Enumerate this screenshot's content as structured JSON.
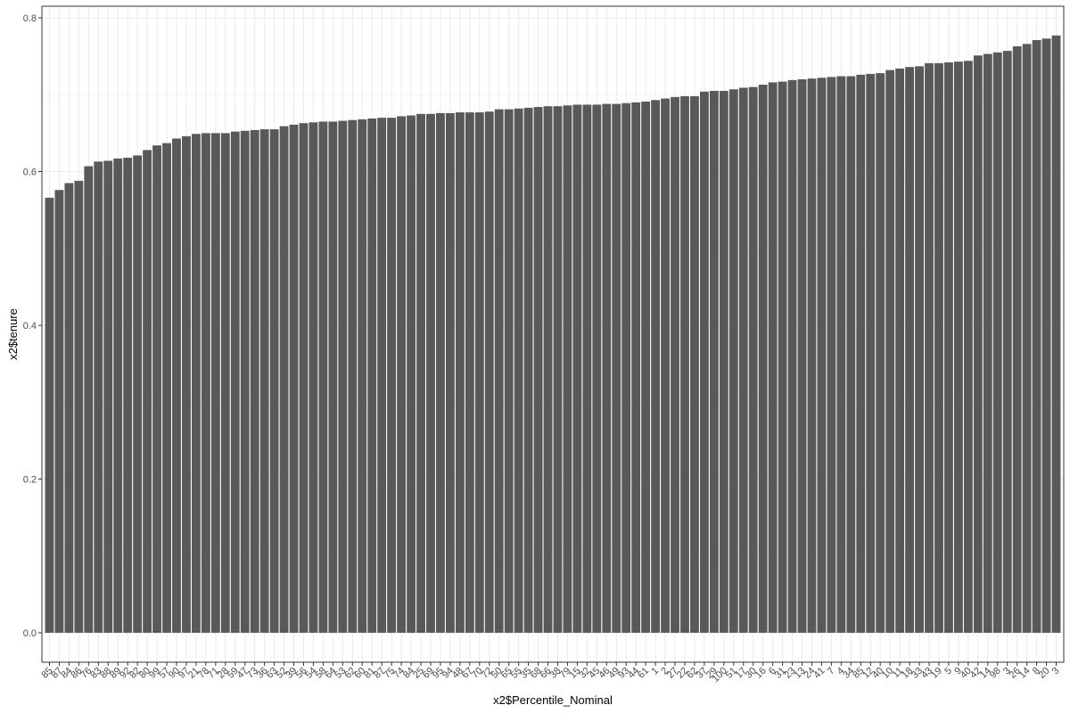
{
  "colors": {
    "bar": "#595959",
    "panel_border": "#333333",
    "grid_major": "#ebebeb",
    "grid_minor": "#f2f2f2",
    "tick_text": "#4d4d4d",
    "axis_title": "#000000",
    "background": "#ffffff"
  },
  "chart_data": {
    "type": "bar",
    "title": "",
    "xlabel": "x2$Percentile_Nominal",
    "ylabel": "x2$tenure",
    "ylim": [
      0,
      0.8
    ],
    "yticks": [
      0.0,
      0.2,
      0.4,
      0.6,
      0.8
    ],
    "ytick_labels": [
      "0.0",
      "0.2",
      "0.4",
      "0.6",
      "0.8"
    ],
    "grid": true,
    "legend": "none",
    "categories": [
      "85",
      "87",
      "84",
      "86",
      "76",
      "83",
      "88",
      "89",
      "92",
      "82",
      "80",
      "99",
      "57",
      "90",
      "97",
      "21",
      "78",
      "71",
      "28",
      "59",
      "47",
      "73",
      "36",
      "63",
      "52",
      "39",
      "56",
      "54",
      "58",
      "64",
      "53",
      "62",
      "60",
      "81",
      "87",
      "75",
      "74",
      "84",
      "25",
      "69",
      "95",
      "94",
      "48",
      "67",
      "70",
      "72",
      "50",
      "65",
      "55",
      "35",
      "68",
      "66",
      "38",
      "79",
      "15",
      "32",
      "45",
      "46",
      "49",
      "93",
      "44",
      "61",
      "1",
      "2",
      "27",
      "22",
      "62",
      "37",
      "29",
      "100",
      "51",
      "17",
      "30",
      "16",
      "6",
      "31",
      "23",
      "13",
      "24",
      "41",
      "7",
      "4",
      "34",
      "85",
      "12",
      "40",
      "10",
      "11",
      "18",
      "33",
      "43",
      "19",
      "5",
      "9",
      "40",
      "42",
      "14",
      "98",
      "3",
      "26",
      "14",
      "8",
      "20",
      "3"
    ],
    "values": [
      0.566,
      0.576,
      0.585,
      0.588,
      0.607,
      0.613,
      0.614,
      0.617,
      0.618,
      0.621,
      0.628,
      0.634,
      0.637,
      0.643,
      0.646,
      0.649,
      0.65,
      0.65,
      0.65,
      0.652,
      0.653,
      0.654,
      0.655,
      0.655,
      0.659,
      0.661,
      0.663,
      0.664,
      0.665,
      0.665,
      0.666,
      0.667,
      0.668,
      0.669,
      0.67,
      0.67,
      0.672,
      0.673,
      0.675,
      0.675,
      0.676,
      0.676,
      0.677,
      0.677,
      0.677,
      0.678,
      0.681,
      0.681,
      0.682,
      0.683,
      0.684,
      0.685,
      0.685,
      0.686,
      0.687,
      0.687,
      0.687,
      0.688,
      0.688,
      0.689,
      0.69,
      0.691,
      0.693,
      0.695,
      0.697,
      0.698,
      0.698,
      0.704,
      0.705,
      0.705,
      0.707,
      0.709,
      0.71,
      0.713,
      0.716,
      0.717,
      0.719,
      0.72,
      0.721,
      0.722,
      0.723,
      0.724,
      0.724,
      0.726,
      0.727,
      0.728,
      0.732,
      0.734,
      0.736,
      0.737,
      0.741,
      0.741,
      0.742,
      0.743,
      0.744,
      0.751,
      0.753,
      0.755,
      0.757,
      0.763,
      0.766,
      0.771,
      0.773,
      0.777
    ]
  }
}
